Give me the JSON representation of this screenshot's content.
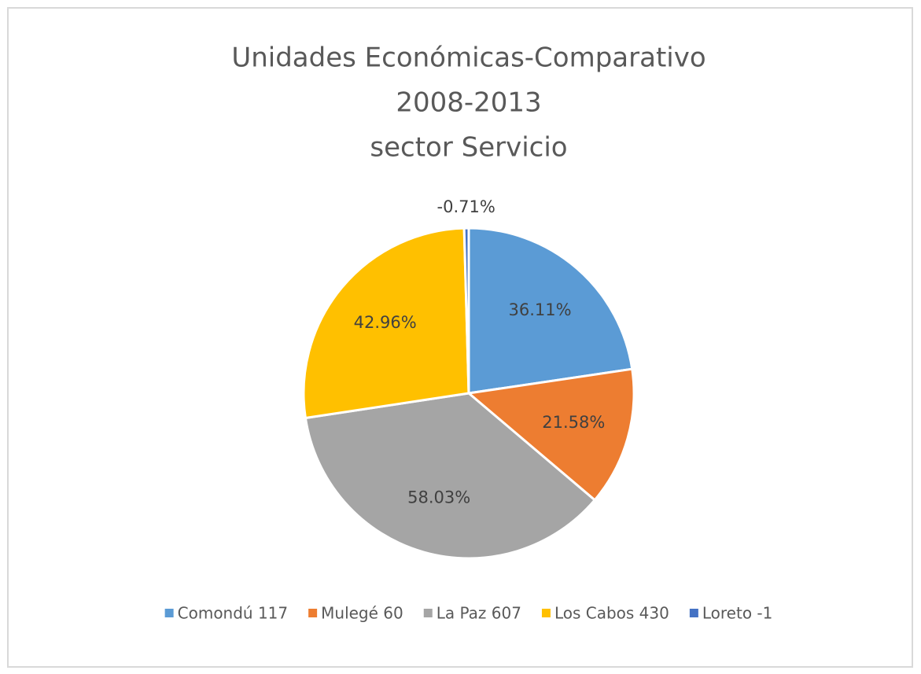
{
  "chart_data": {
    "type": "pie",
    "title": [
      "Unidades Económicas-Comparativo",
      "2008-2013",
      "sector Servicio"
    ],
    "categories": [
      "Comondú 117",
      "Mulegé 60",
      "La Paz 607",
      "Los Cabos 430",
      "Loreto -1"
    ],
    "values": [
      36.11,
      21.58,
      58.03,
      42.96,
      -0.71
    ],
    "value_labels": [
      "36.11%",
      "21.58%",
      "58.03%",
      "42.96%",
      "-0.71%"
    ],
    "colors": [
      "#5b9bd5",
      "#ed7d31",
      "#a5a5a5",
      "#ffc000",
      "#4472c4"
    ],
    "legend": "bottom"
  }
}
